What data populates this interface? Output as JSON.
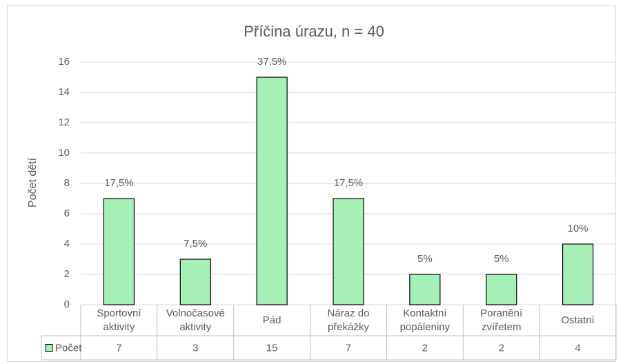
{
  "chart_data": {
    "type": "bar",
    "title": "Příčina úrazu, n = 40",
    "y_label": "Počet dětí",
    "categories": [
      "Sportovní aktivity",
      "Volnočasové aktivity",
      "Pád",
      "Náraz do překážky",
      "Kontaktní popáleniny",
      "Poranění zvířetem",
      "Ostatní"
    ],
    "series": [
      {
        "name": "Počet",
        "color": "#a6f0b8",
        "values": [
          7,
          3,
          15,
          7,
          2,
          2,
          4
        ]
      }
    ],
    "data_labels": [
      "17,5%",
      "7,5%",
      "37,5%",
      "17,5%",
      "5%",
      "5%",
      "10%"
    ],
    "ylim": [
      0,
      16
    ],
    "yticks": [
      0,
      2,
      4,
      6,
      8,
      10,
      12,
      14,
      16
    ],
    "grid": true
  }
}
